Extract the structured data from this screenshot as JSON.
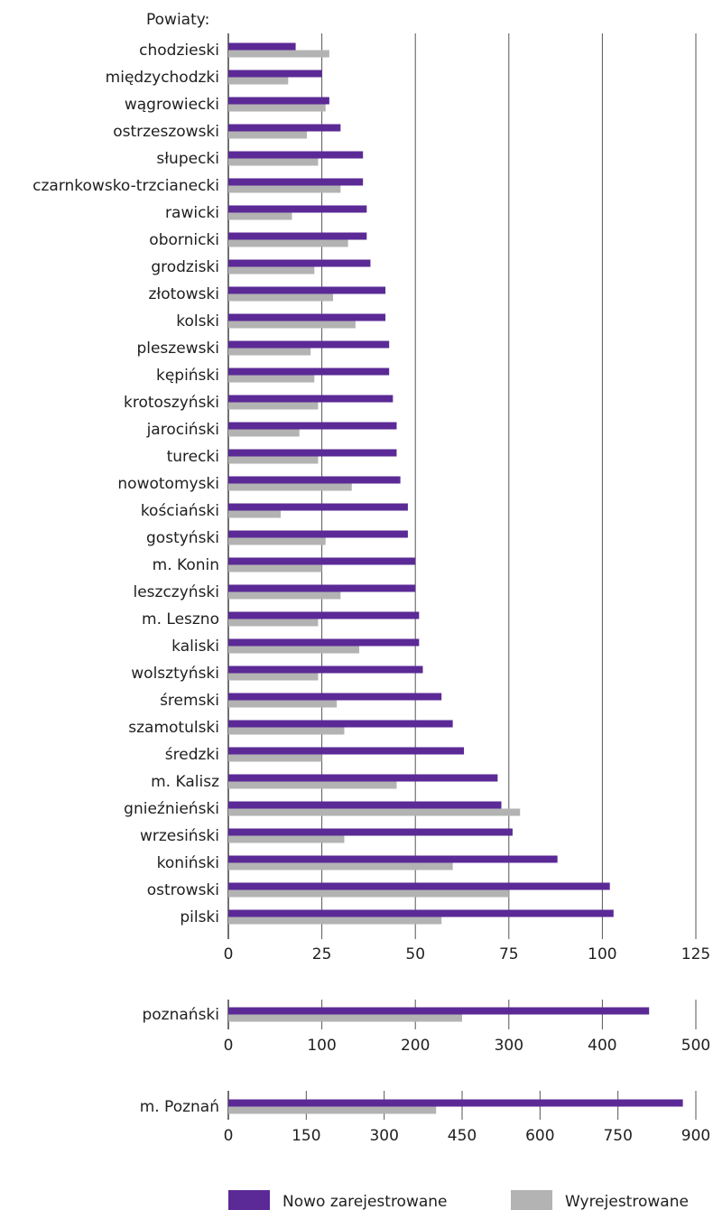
{
  "chart_data": [
    {
      "type": "bar",
      "orientation": "horizontal",
      "ylabel": "Powiaty:",
      "categories": [
        "chodzieski",
        "międzychodzki",
        "wągrowiecki",
        "ostrzeszowski",
        "słupecki",
        "czarnkowsko-trzcianecki",
        "rawicki",
        "obornicki",
        "grodziski",
        "złotowski",
        "kolski",
        "pleszewski",
        "kępiński",
        "krotoszyński",
        "jarociński",
        "turecki",
        "nowotomyski",
        "kościański",
        "gostyński",
        "m. Konin",
        "leszczyński",
        "m. Leszno",
        "kaliski",
        "wolsztyński",
        "śremski",
        "szamotulski",
        "średzki",
        "m. Kalisz",
        "gnieźnieński",
        "wrzesiński",
        "koniński",
        "ostrowski",
        "pilski"
      ],
      "series": [
        {
          "name": "Nowo zarejestrowane",
          "values": [
            18,
            25,
            27,
            30,
            36,
            36,
            37,
            37,
            38,
            42,
            42,
            43,
            43,
            44,
            45,
            45,
            46,
            48,
            48,
            50,
            50,
            51,
            51,
            52,
            57,
            60,
            63,
            72,
            73,
            76,
            88,
            102,
            103
          ]
        },
        {
          "name": "Wyrejestrowane",
          "values": [
            27,
            16,
            26,
            21,
            24,
            30,
            17,
            32,
            23,
            28,
            34,
            22,
            23,
            24,
            19,
            24,
            33,
            14,
            26,
            25,
            30,
            24,
            35,
            24,
            29,
            31,
            25,
            45,
            78,
            31,
            60,
            75,
            57
          ]
        }
      ],
      "xlim": [
        0,
        125
      ],
      "xticks": [
        "0",
        "25",
        "50",
        "75",
        "100",
        "125"
      ],
      "grid": true
    },
    {
      "type": "bar",
      "orientation": "horizontal",
      "categories": [
        "poznański"
      ],
      "series": [
        {
          "name": "Nowo zarejestrowane",
          "values": [
            450
          ]
        },
        {
          "name": "Wyrejestrowane",
          "values": [
            250
          ]
        }
      ],
      "xlim": [
        0,
        500
      ],
      "xticks": [
        "0",
        "100",
        "200",
        "300",
        "400",
        "500"
      ],
      "grid": true
    },
    {
      "type": "bar",
      "orientation": "horizontal",
      "categories": [
        "m. Poznań"
      ],
      "series": [
        {
          "name": "Nowo zarejestrowane",
          "values": [
            875
          ]
        },
        {
          "name": "Wyrejestrowane",
          "values": [
            400
          ]
        }
      ],
      "xlim": [
        0,
        900
      ],
      "xticks": [
        "0",
        "150",
        "300",
        "450",
        "600",
        "750",
        "900"
      ],
      "grid": true
    }
  ],
  "legend": {
    "placement": "bottom",
    "items": [
      {
        "label": "Nowo zarejestrowane",
        "color": "#5b2a96"
      },
      {
        "label": "Wyrejestrowane",
        "color": "#b3b3b3"
      }
    ]
  },
  "colors": {
    "new": "#5b2a96",
    "removed": "#b3b3b3",
    "grid": "#555555"
  }
}
